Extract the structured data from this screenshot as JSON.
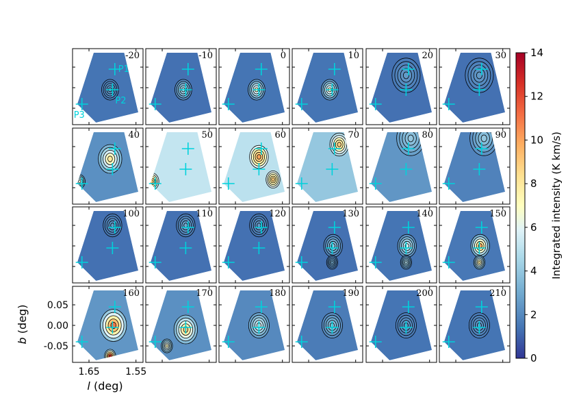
{
  "chart_data": {
    "type": "heatmap",
    "panel_labels": [
      "-20",
      "-10",
      "0",
      "10",
      "20",
      "30",
      "40",
      "50",
      "60",
      "70",
      "80",
      "90",
      "100",
      "110",
      "120",
      "130",
      "140",
      "150",
      "160",
      "170",
      "180",
      "190",
      "200",
      "210"
    ],
    "grid_rows": 4,
    "grid_cols": 6,
    "xlabel_var": "l",
    "xlabel_unit": " (deg)",
    "ylabel_var": "b",
    "ylabel_unit": " (deg)",
    "x_tick_labels": [
      "1.65",
      "1.55"
    ],
    "x_ticks": [
      1.65,
      1.55
    ],
    "xlim": [
      1.685,
      1.535
    ],
    "y_tick_labels": [
      "0.05",
      "0.00",
      "-0.05"
    ],
    "y_ticks": [
      0.05,
      0.0,
      -0.05
    ],
    "ylim": [
      -0.09,
      0.095
    ],
    "colorbar": {
      "label": "Integrated intensity (K km/s)",
      "ticks": [
        0,
        2,
        4,
        6,
        8,
        10,
        12,
        14
      ],
      "tick_labels": [
        "0",
        "2",
        "4",
        "6",
        "8",
        "10",
        "12",
        "14"
      ],
      "range": [
        0,
        14
      ],
      "colormap": "RdYlBu_r"
    },
    "points": [
      {
        "name": "P1",
        "l": 1.595,
        "b": 0.045
      },
      {
        "name": "P2",
        "l": 1.6,
        "b": -0.005
      },
      {
        "name": "P3",
        "l": 1.665,
        "b": -0.04
      }
    ],
    "marker_color": "#00d2dc",
    "peak_intensity_per_panel": [
      2.5,
      5,
      7,
      7,
      2.5,
      2.5,
      8,
      9,
      10,
      9,
      4,
      4,
      2.5,
      3,
      2.5,
      4,
      6,
      10,
      13,
      9,
      6,
      4,
      2.5,
      2.5
    ],
    "background_intensity_per_panel": [
      1.4,
      1.3,
      1.4,
      1.4,
      1.3,
      1.3,
      2.2,
      5.2,
      5.0,
      4.0,
      2.4,
      1.8,
      1.3,
      1.3,
      1.3,
      1.3,
      1.4,
      1.5,
      2.4,
      2.2,
      2.0,
      1.6,
      1.4,
      1.4
    ]
  }
}
